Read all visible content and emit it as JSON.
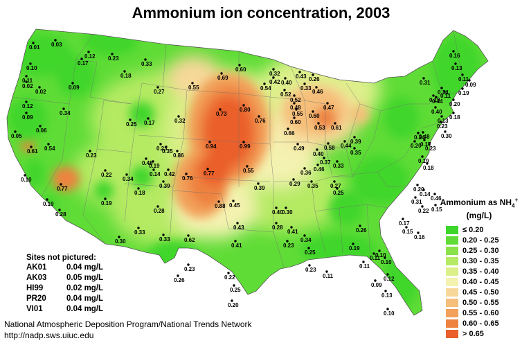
{
  "title": "Ammonium ion concentration, 2003",
  "legend": {
    "title": "Ammonium as NH",
    "title_sub": "4",
    "title_sup": "+",
    "unit": "(mg/L)",
    "classes": [
      {
        "label": "≤ 0.20",
        "color": "#3fd62b"
      },
      {
        "label": "0.20 - 0.25",
        "color": "#5fdc36"
      },
      {
        "label": "0.25 - 0.30",
        "color": "#8ae24a"
      },
      {
        "label": "0.30 - 0.35",
        "color": "#b5ea64"
      },
      {
        "label": "0.35 - 0.40",
        "color": "#dcf08a"
      },
      {
        "label": "0.40 - 0.45",
        "color": "#f4f2b0"
      },
      {
        "label": "0.45 - 0.50",
        "color": "#f7d89a"
      },
      {
        "label": "0.50 - 0.55",
        "color": "#f5bf7a"
      },
      {
        "label": "0.55 - 0.60",
        "color": "#f2a05a"
      },
      {
        "label": "0.60 - 0.65",
        "color": "#ee8240"
      },
      {
        "label": "> 0.65",
        "color": "#ea5f2c"
      }
    ]
  },
  "sites_not_pictured": {
    "title": "Sites not pictured:",
    "rows": [
      {
        "id": "AK01",
        "value": "0.04 mg/L"
      },
      {
        "id": "AK03",
        "value": "0.05 mg/L"
      },
      {
        "id": "HI99",
        "value": "0.02 mg/L"
      },
      {
        "id": "PR20",
        "value": "0.04 mg/L"
      },
      {
        "id": "VI01",
        "value": "0.04 mg/L"
      }
    ]
  },
  "credit": {
    "line1": "National Atmospheric Deposition Program/National Trends Network",
    "line2": "http://nadp.sws.uiuc.edu"
  },
  "sites": [
    {
      "v": "0.01"
    },
    {
      "v": "0.03"
    },
    {
      "v": "0.12"
    },
    {
      "v": "0.23"
    },
    {
      "v": "0.33"
    },
    {
      "v": "0.17"
    },
    {
      "v": "0.10"
    },
    {
      "v": "0.11"
    },
    {
      "v": "0.02"
    },
    {
      "v": "0.02"
    },
    {
      "v": "0.09"
    },
    {
      "v": "0.18"
    },
    {
      "v": "0.12"
    },
    {
      "v": "0.27"
    },
    {
      "v": "0.34"
    },
    {
      "v": "0.09"
    },
    {
      "v": "0.06"
    },
    {
      "v": "0.05"
    },
    {
      "v": "0.61"
    },
    {
      "v": "0.54"
    },
    {
      "v": "0.23"
    },
    {
      "v": "0.10"
    },
    {
      "v": "0.77"
    },
    {
      "v": "0.25"
    },
    {
      "v": "0.17"
    },
    {
      "v": "0.23"
    },
    {
      "v": "0.32"
    },
    {
      "v": "0.55"
    },
    {
      "v": "0.69"
    },
    {
      "v": "0.60"
    },
    {
      "v": "0.73"
    },
    {
      "v": "0.80"
    },
    {
      "v": "0.76"
    },
    {
      "v": "0.35"
    },
    {
      "v": "0.86"
    },
    {
      "v": "0.94"
    },
    {
      "v": "0.99"
    },
    {
      "v": "0.48"
    },
    {
      "v": "0.22"
    },
    {
      "v": "0.34"
    },
    {
      "v": "0.19"
    },
    {
      "v": "0.14"
    },
    {
      "v": "0.42"
    },
    {
      "v": "0.39"
    },
    {
      "v": "0.76"
    },
    {
      "v": "0.77"
    },
    {
      "v": "0.55"
    },
    {
      "v": "0.19"
    },
    {
      "v": "0.18"
    },
    {
      "v": "0.28"
    },
    {
      "v": "0.88"
    },
    {
      "v": "0.39"
    },
    {
      "v": "0.19"
    },
    {
      "v": "0.28"
    },
    {
      "v": "0.33"
    },
    {
      "v": "0.30"
    },
    {
      "v": "0.62"
    },
    {
      "v": "0.45"
    },
    {
      "v": "0.43"
    },
    {
      "v": "0.41"
    },
    {
      "v": "0.33"
    },
    {
      "v": "0.23"
    },
    {
      "v": "0.26"
    },
    {
      "v": "0.22"
    },
    {
      "v": "0.25"
    },
    {
      "v": "0.20"
    },
    {
      "v": "0.32"
    },
    {
      "v": "0.42"
    },
    {
      "v": "0.54"
    },
    {
      "v": "0.40"
    },
    {
      "v": "0.43"
    },
    {
      "v": "0.26"
    },
    {
      "v": "0.33"
    },
    {
      "v": "0.46"
    },
    {
      "v": "0.52"
    },
    {
      "v": "0.52"
    },
    {
      "v": "0.48"
    },
    {
      "v": "0.55"
    },
    {
      "v": "0.60"
    },
    {
      "v": "0.66"
    },
    {
      "v": "0.60"
    },
    {
      "v": "0.47"
    },
    {
      "v": "0.53"
    },
    {
      "v": "0.61"
    },
    {
      "v": "0.49"
    },
    {
      "v": "0.40"
    },
    {
      "v": "0.58"
    },
    {
      "v": "0.44"
    },
    {
      "v": "0.39"
    },
    {
      "v": "0.35"
    },
    {
      "v": "0.46"
    },
    {
      "v": "0.37"
    },
    {
      "v": "0.33"
    },
    {
      "v": "0.36"
    },
    {
      "v": "0.29"
    },
    {
      "v": "0.35"
    },
    {
      "v": "0.27"
    },
    {
      "v": "0.25"
    },
    {
      "v": "0.40"
    },
    {
      "v": "0.30"
    },
    {
      "v": "0.28"
    },
    {
      "v": "0.41"
    },
    {
      "v": "0.34"
    },
    {
      "v": "0.23"
    },
    {
      "v": "0.25"
    },
    {
      "v": "0.23"
    },
    {
      "v": "0.11"
    },
    {
      "v": "0.11"
    },
    {
      "v": "0.10"
    },
    {
      "v": "0.11"
    },
    {
      "v": "0.26"
    },
    {
      "v": "0.19"
    },
    {
      "v": "0.10"
    },
    {
      "v": "0.12"
    },
    {
      "v": "0.09"
    },
    {
      "v": "0.13"
    },
    {
      "v": "0.10"
    },
    {
      "v": "0.16"
    },
    {
      "v": "0.13"
    },
    {
      "v": "0.11"
    },
    {
      "v": "0.09"
    },
    {
      "v": "0.14"
    },
    {
      "v": "0.19"
    },
    {
      "v": "0.11"
    },
    {
      "v": "0.31"
    },
    {
      "v": "0.19"
    },
    {
      "v": "0.44"
    },
    {
      "v": "0.40"
    },
    {
      "v": "0.20"
    },
    {
      "v": "0.18"
    },
    {
      "v": "0.13"
    },
    {
      "v": "0.23"
    },
    {
      "v": "0.30"
    },
    {
      "v": "0.24"
    },
    {
      "v": "0.48"
    },
    {
      "v": "0.20"
    },
    {
      "v": "0.17"
    },
    {
      "v": "0.23"
    },
    {
      "v": "0.19"
    },
    {
      "v": "0.18"
    },
    {
      "v": "0.20"
    },
    {
      "v": "0.14"
    },
    {
      "v": "0.31"
    },
    {
      "v": "0.22"
    },
    {
      "v": "0.46"
    },
    {
      "v": "0.15"
    },
    {
      "v": "0.17"
    },
    {
      "v": "0.15"
    },
    {
      "v": "0.16"
    }
  ]
}
